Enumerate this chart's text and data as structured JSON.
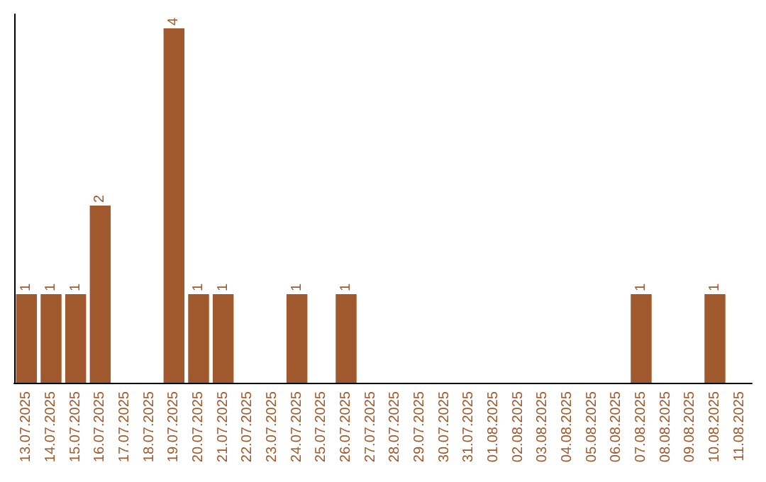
{
  "chart_data": {
    "type": "bar",
    "categories": [
      "13.07.2025",
      "14.07.2025",
      "15.07.2025",
      "16.07.2025",
      "17.07.2025",
      "18.07.2025",
      "19.07.2025",
      "20.07.2025",
      "21.07.2025",
      "22.07.2025",
      "23.07.2025",
      "24.07.2025",
      "25.07.2025",
      "26.07.2025",
      "27.07.2025",
      "28.07.2025",
      "29.07.2025",
      "30.07.2025",
      "31.07.2025",
      "01.08.2025",
      "02.08.2025",
      "03.08.2025",
      "04.08.2025",
      "05.08.2025",
      "06.08.2025",
      "07.08.2025",
      "08.08.2025",
      "09.08.2025",
      "10.08.2025",
      "11.08.2025"
    ],
    "values": [
      1,
      1,
      1,
      2,
      0,
      0,
      4,
      1,
      1,
      0,
      0,
      1,
      0,
      1,
      0,
      0,
      0,
      0,
      0,
      0,
      0,
      0,
      0,
      0,
      0,
      1,
      0,
      0,
      1,
      0
    ],
    "value_labels": [
      "1",
      "1",
      "1",
      "2",
      null,
      null,
      "4",
      "1",
      "1",
      null,
      null,
      "1",
      null,
      "1",
      null,
      null,
      null,
      null,
      null,
      null,
      null,
      null,
      null,
      null,
      null,
      "1",
      null,
      null,
      "1",
      null
    ],
    "color": "#a0592d",
    "tick_labels": "x",
    "grid": false
  }
}
